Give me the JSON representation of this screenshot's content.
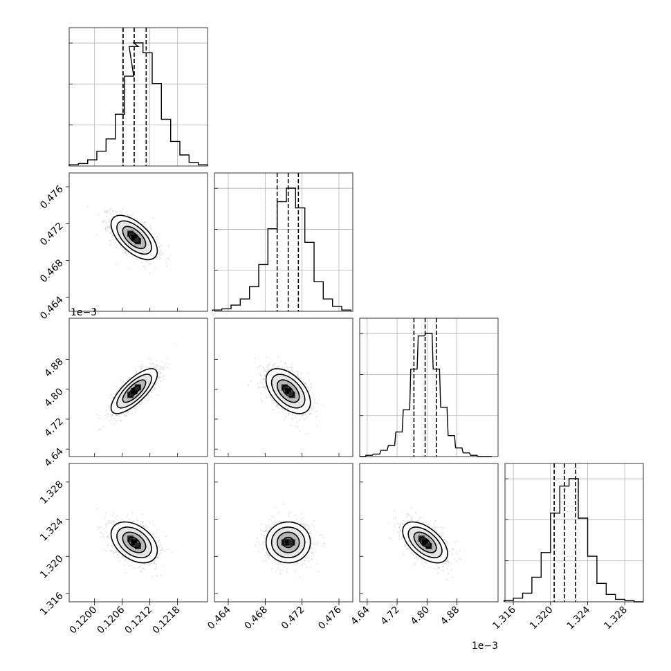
{
  "chart_data": {
    "type": "corner",
    "params": [
      {
        "range": [
          0.11945,
          0.12245
        ],
        "ticks": [
          0.12,
          0.1206,
          0.1212,
          0.1218
        ],
        "tick_labels": [
          "0.1200",
          "0.1206",
          "0.1212",
          "0.1218"
        ],
        "offset_label": "",
        "median": 0.12086,
        "q16": 0.12062,
        "q84": 0.12112,
        "sigma": 0.00025,
        "hist_centers": [
          0.11955,
          0.11975,
          0.11995,
          0.12015,
          0.12035,
          0.12055,
          0.12075,
          0.12085,
          0.12095,
          0.12115,
          0.12135,
          0.12155,
          0.12175,
          0.12195,
          0.12215,
          0.12235
        ],
        "hist_values": [
          0.01,
          0.02,
          0.05,
          0.12,
          0.22,
          0.42,
          0.73,
          0.97,
          1.0,
          0.92,
          0.67,
          0.38,
          0.2,
          0.09,
          0.03,
          0.01
        ]
      },
      {
        "range": [
          0.4625,
          0.4775
        ],
        "ticks": [
          0.464,
          0.468,
          0.472,
          0.476
        ],
        "tick_labels": [
          "0.464",
          "0.468",
          "0.472",
          "0.476"
        ],
        "offset_label": "",
        "median": 0.4705,
        "q16": 0.4693,
        "q84": 0.4716,
        "sigma": 0.0012,
        "hist_centers": [
          0.4628,
          0.4638,
          0.4648,
          0.4658,
          0.4668,
          0.4678,
          0.4688,
          0.4698,
          0.4708,
          0.4718,
          0.4728,
          0.4738,
          0.4748,
          0.4758,
          0.4768
        ],
        "hist_values": [
          0.01,
          0.02,
          0.05,
          0.1,
          0.2,
          0.38,
          0.67,
          0.89,
          1.0,
          0.84,
          0.56,
          0.24,
          0.1,
          0.04,
          0.01
        ]
      },
      {
        "range": [
          4.62,
          4.99
        ],
        "ticks": [
          4.64,
          4.72,
          4.8,
          4.88
        ],
        "tick_labels": [
          "4.64",
          "4.72",
          "4.80",
          "4.88"
        ],
        "offset_label": "1e−3",
        "median": 4.795,
        "q16": 4.765,
        "q84": 4.825,
        "sigma": 0.03,
        "hist_centers": [
          4.628,
          4.645,
          4.665,
          4.685,
          4.705,
          4.725,
          4.745,
          4.765,
          4.785,
          4.805,
          4.825,
          4.845,
          4.865,
          4.885,
          4.905,
          4.925,
          4.945,
          4.965
        ],
        "hist_values": [
          0.0,
          0.01,
          0.02,
          0.05,
          0.09,
          0.2,
          0.38,
          0.71,
          0.98,
          1.0,
          0.71,
          0.4,
          0.17,
          0.07,
          0.03,
          0.01,
          0.0,
          0.0
        ]
      },
      {
        "range": [
          1.3151,
          1.33
        ],
        "ticks": [
          1.316,
          1.32,
          1.324,
          1.328
        ],
        "tick_labels": [
          "1.316",
          "1.320",
          "1.324",
          "1.328"
        ],
        "offset_label": "",
        "median": 1.3215,
        "q16": 1.3204,
        "q84": 1.3227,
        "sigma": 0.0011,
        "hist_centers": [
          1.3155,
          1.3165,
          1.3175,
          1.3185,
          1.3195,
          1.3205,
          1.3215,
          1.3225,
          1.3235,
          1.3245,
          1.3255,
          1.3265,
          1.3275,
          1.3285,
          1.3295
        ],
        "hist_values": [
          0.01,
          0.03,
          0.07,
          0.2,
          0.4,
          0.72,
          0.94,
          1.0,
          0.68,
          0.37,
          0.15,
          0.06,
          0.02,
          0.01,
          0.0
        ]
      }
    ],
    "correlations": {
      "1-0": -0.6,
      "2-0": 0.75,
      "2-1": -0.5,
      "3-0": -0.4,
      "3-1": 0.0,
      "3-2": -0.55
    },
    "contour_levels": [
      "0.5σ",
      "1σ",
      "1.5σ",
      "2σ"
    ],
    "quantiles": [
      0.16,
      0.5,
      0.84
    ],
    "grid": true,
    "colors": {
      "axis": "#000000",
      "grid": "#b0b0b0",
      "line": "#000000",
      "points": "#9a9a9a",
      "density_dark": "#000000"
    }
  }
}
